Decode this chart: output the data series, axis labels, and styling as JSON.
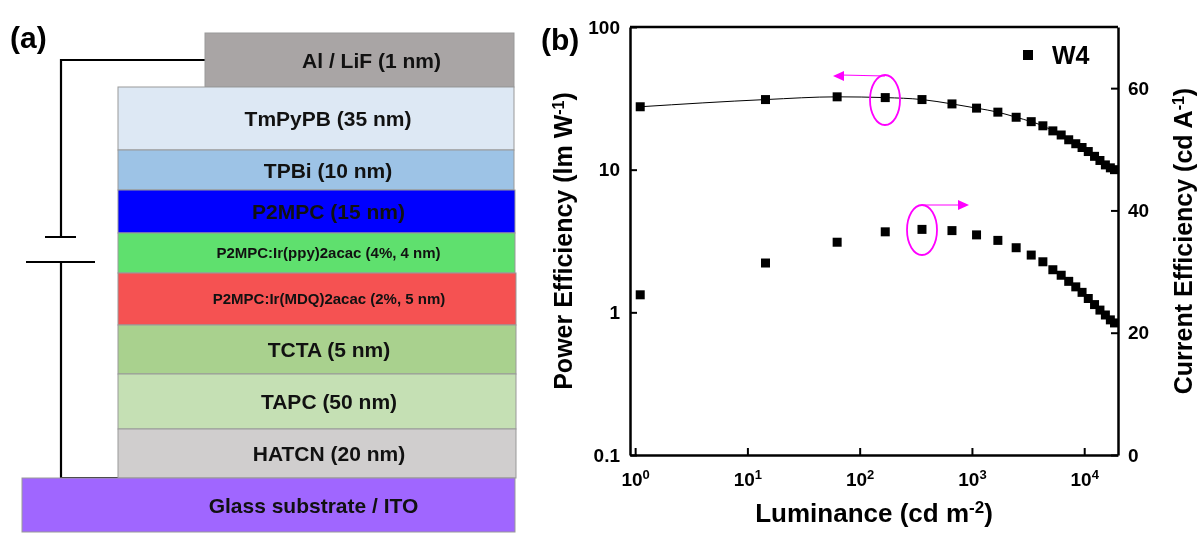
{
  "chart_data": [
    {
      "type": "other",
      "title": "(a)",
      "annotations": [
        "Al / LiF (1 nm)",
        "TmPyPB (35 nm)",
        "TPBi (10 nm)",
        "P2MPC (15 nm)",
        "P2MPC:Ir(ppy)2acac (4%, 4 nm)",
        "P2MPC:Ir(MDQ)2acac (2%, 5 nm)",
        "TCTA (5 nm)",
        "TAPC (50 nm)",
        "HATCN (20 nm)",
        "Glass substrate / ITO"
      ]
    },
    {
      "type": "scatter",
      "title": "(b)",
      "xlabel": "Luminance (cd m$^{-2}$)",
      "ylabel": "Power Efficiency (lm W$^{-1}$)",
      "y2label": "Current Efficiency (cd A$^{-1}$)",
      "x": [
        1.11,
        14.5,
        63,
        169,
        359,
        664,
        1099,
        1702,
        2477,
        3373,
        4285,
        5257,
        6237,
        7278,
        8414,
        9570,
        10870,
        12360,
        13810,
        15440,
        17100,
        18620
      ],
      "log": "xy",
      "xlim": [
        0.9,
        20000
      ],
      "ylim": [
        0.1,
        100
      ],
      "y2lim": [
        0,
        70
      ],
      "xticks": [
        {
          "value": 1,
          "label": "10$^{0}$"
        },
        {
          "value": 10,
          "label": "10$^{1}$"
        },
        {
          "value": 100,
          "label": "10$^{2}$"
        },
        {
          "value": 1000,
          "label": "10$^{3}$"
        },
        {
          "value": 10000,
          "label": "10$^{4}$"
        }
      ],
      "yticks": [
        0.1,
        1,
        10,
        100
      ],
      "y2ticks": [
        0,
        20,
        40,
        60
      ],
      "marker": "square",
      "legend": "top right",
      "series": [
        {
          "name": "W4",
          "type": "line",
          "color": "#000000",
          "values": [
            27.6,
            31.0,
            32.4,
            32.0,
            31.0,
            28.9,
            27.0,
            25.3,
            23.3,
            21.7,
            20.3,
            18.7,
            17.5,
            16.2,
            15.2,
            14.3,
            13.4,
            12.4,
            11.6,
            10.8,
            10.3,
            10.0
          ]
        },
        {
          "type": "scatter",
          "axis": "y2",
          "color": "#000000",
          "values": [
            26.2,
            31.4,
            34.8,
            36.5,
            36.9,
            36.7,
            36.0,
            35.1,
            33.9,
            32.7,
            31.6,
            30.3,
            29.4,
            28.4,
            27.5,
            26.6,
            25.6,
            24.6,
            23.7,
            22.9,
            22.1,
            21.6
          ]
        }
      ]
    }
  ]
}
